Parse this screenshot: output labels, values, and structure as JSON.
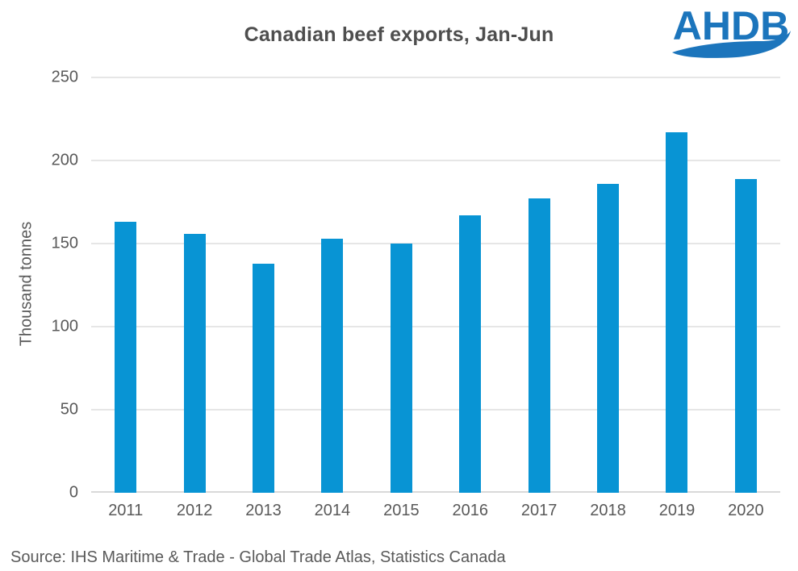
{
  "logo": {
    "text": "AHDB",
    "color": "#1C75BC"
  },
  "source_note": "Source: IHS Maritime & Trade - Global Trade Atlas, Statistics Canada",
  "chart_data": {
    "type": "bar",
    "title": "Canadian beef exports, Jan-Jun",
    "xlabel": "",
    "ylabel": "Thousand tonnes",
    "categories": [
      "2011",
      "2012",
      "2013",
      "2014",
      "2015",
      "2016",
      "2017",
      "2018",
      "2019",
      "2020"
    ],
    "values": [
      163,
      156,
      138,
      153,
      150,
      167,
      177,
      186,
      217,
      189
    ],
    "ylim": [
      0,
      250
    ],
    "ytick_interval": 50,
    "grid": true,
    "legend": false,
    "bar_color": "#0894D4",
    "gridline_color": "#E6E6E6",
    "baseline_color": "#D9D9D9",
    "axis_text_color": "#595959",
    "title_color": "#4E4E4E"
  }
}
